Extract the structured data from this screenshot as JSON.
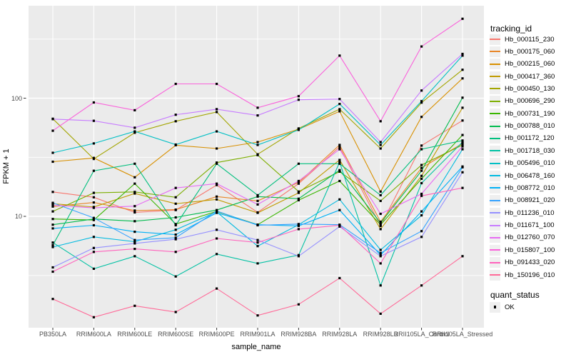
{
  "figure": {
    "y_axis_title": "FPKM + 1",
    "x_axis_title": "sample_name"
  },
  "legend": {
    "tracking_title": "tracking_id",
    "quant_title": "quant_status",
    "quant_entries": [
      {
        "label": "OK",
        "marker": "black-square"
      }
    ]
  },
  "colors": {
    "panel_bg": "#EBEBEB",
    "grid": "#FFFFFF",
    "tick_mark": "#333333",
    "tick_label": "#4D4D4D",
    "text": "#000000",
    "legend_key_bg": "#EFEFEF",
    "point": "#000000"
  },
  "chart_data": {
    "type": "line",
    "title": "",
    "xlabel": "sample_name",
    "ylabel": "FPKM + 1",
    "y_scale": "log10",
    "grid": true,
    "legend_position": "right",
    "point_shape": "filled-square",
    "y_ticks": [
      100,
      10
    ],
    "y_minor_ticks": [
      316,
      31.6,
      3.16
    ],
    "ylim": [
      1.1,
      620
    ],
    "categories": [
      "PB350LA",
      "RRIM600LA",
      "RRIM600LE",
      "RRIM600SE",
      "RRIM600PE",
      "RRIM901LA",
      "RRIM928BA",
      "RRIM928LA",
      "RRIM928LB",
      "RRII105LA_Control",
      "RRII105LA_Stressed"
    ],
    "series": [
      {
        "name": "Hb_000115_230",
        "color": "#F8766D",
        "values": [
          16.1,
          14.5,
          10.8,
          11.3,
          18.4,
          10.8,
          18.9,
          38.6,
          8.3,
          39.7,
          64.7
        ]
      },
      {
        "name": "Hb_000175_060",
        "color": "#E88526",
        "values": [
          12.1,
          13.1,
          11.2,
          11.4,
          14.7,
          13.5,
          19.4,
          40.2,
          9.0,
          25.7,
          41.4
        ]
      },
      {
        "name": "Hb_000215_060",
        "color": "#D89000",
        "values": [
          29,
          31.2,
          21.4,
          40,
          37.5,
          42.5,
          54.6,
          77.4,
          16.2,
          69.5,
          147
        ]
      },
      {
        "name": "Hb_000417_360",
        "color": "#C09B00",
        "values": [
          12.8,
          12,
          15.6,
          12.8,
          13.9,
          10.7,
          15.8,
          30,
          7.8,
          22,
          83
        ]
      },
      {
        "name": "Hb_000450_130",
        "color": "#A3A500",
        "values": [
          67,
          30.6,
          51,
          63.8,
          76.3,
          33.5,
          55.4,
          80.7,
          37.5,
          91.7,
          174
        ]
      },
      {
        "name": "Hb_000696_290",
        "color": "#7CAE00",
        "values": [
          11,
          15.8,
          16.1,
          14.5,
          28.5,
          33,
          16.2,
          23.9,
          13.5,
          27.2,
          40.2
        ]
      },
      {
        "name": "Hb_000731_190",
        "color": "#39B600",
        "values": [
          9.5,
          9.3,
          18.9,
          8.6,
          11,
          8.5,
          13.7,
          19.9,
          8.5,
          20.8,
          48.8
        ]
      },
      {
        "name": "Hb_000788_010",
        "color": "#00BB4E",
        "values": [
          8.5,
          9.5,
          9.1,
          9.8,
          11.3,
          14.7,
          14.1,
          24.6,
          8.8,
          24.3,
          101
        ]
      },
      {
        "name": "Hb_001172_120",
        "color": "#00BF7D",
        "values": [
          5.7,
          24.3,
          27.9,
          8.4,
          27.9,
          15.1,
          27.9,
          27.9,
          15.1,
          37,
          43.8
        ]
      },
      {
        "name": "Hb_001718_030",
        "color": "#00C1A3",
        "values": [
          6,
          3.6,
          4.6,
          3.1,
          4.8,
          4,
          4.7,
          28.7,
          2.6,
          19.1,
          42.5
        ]
      },
      {
        "name": "Hb_005496_010",
        "color": "#00BFC4",
        "values": [
          34.5,
          41.4,
          52.4,
          40.5,
          52.4,
          40.2,
          53.9,
          89.3,
          40.2,
          94.3,
          229
        ]
      },
      {
        "name": "Hb_006478_160",
        "color": "#00BAE0",
        "values": [
          5.5,
          6.7,
          6.1,
          7.7,
          10.9,
          5.6,
          8.5,
          13.9,
          5.2,
          10.2,
          37
        ]
      },
      {
        "name": "Hb_008772_010",
        "color": "#00B0F6",
        "values": [
          7.9,
          8.4,
          7.4,
          7,
          10.7,
          8.5,
          8.3,
          11.3,
          4.7,
          11,
          26.4
        ]
      },
      {
        "name": "Hb_008921_020",
        "color": "#35A2FF",
        "values": [
          13,
          9.7,
          6.3,
          6.6,
          11.1,
          8.4,
          8.6,
          8.5,
          4.9,
          7.5,
          26
        ]
      },
      {
        "name": "Hb_011236_010",
        "color": "#9590FF",
        "values": [
          3.7,
          5.4,
          5.9,
          6.4,
          7.7,
          6.3,
          4.6,
          8.2,
          4.6,
          6.7,
          23.6
        ]
      },
      {
        "name": "Hb_011671_100",
        "color": "#C77CFF",
        "values": [
          66.5,
          64.3,
          56.2,
          72.4,
          80.7,
          71.4,
          97,
          98.3,
          42.5,
          116,
          237
        ]
      },
      {
        "name": "Hb_012760_070",
        "color": "#E76BF3",
        "values": [
          12.4,
          11.8,
          12.2,
          17.4,
          18.9,
          12.6,
          19.9,
          37,
          10.5,
          15.5,
          39.1
        ]
      },
      {
        "name": "Hb_015807_100",
        "color": "#FA62DB",
        "values": [
          53,
          92,
          79,
          132,
          132,
          83,
          104,
          229,
          63.8,
          274,
          470
        ]
      },
      {
        "name": "Hb_091433_020",
        "color": "#FF62BC",
        "values": [
          3.4,
          5,
          5.3,
          5,
          6.5,
          6,
          7.8,
          8.4,
          4,
          14.9,
          17.4
        ]
      },
      {
        "name": "Hb_150196_010",
        "color": "#FF6A98",
        "values": [
          2,
          1.4,
          1.75,
          1.55,
          2.45,
          1.45,
          1.8,
          3,
          1.5,
          2.6,
          4.6
        ]
      }
    ]
  }
}
